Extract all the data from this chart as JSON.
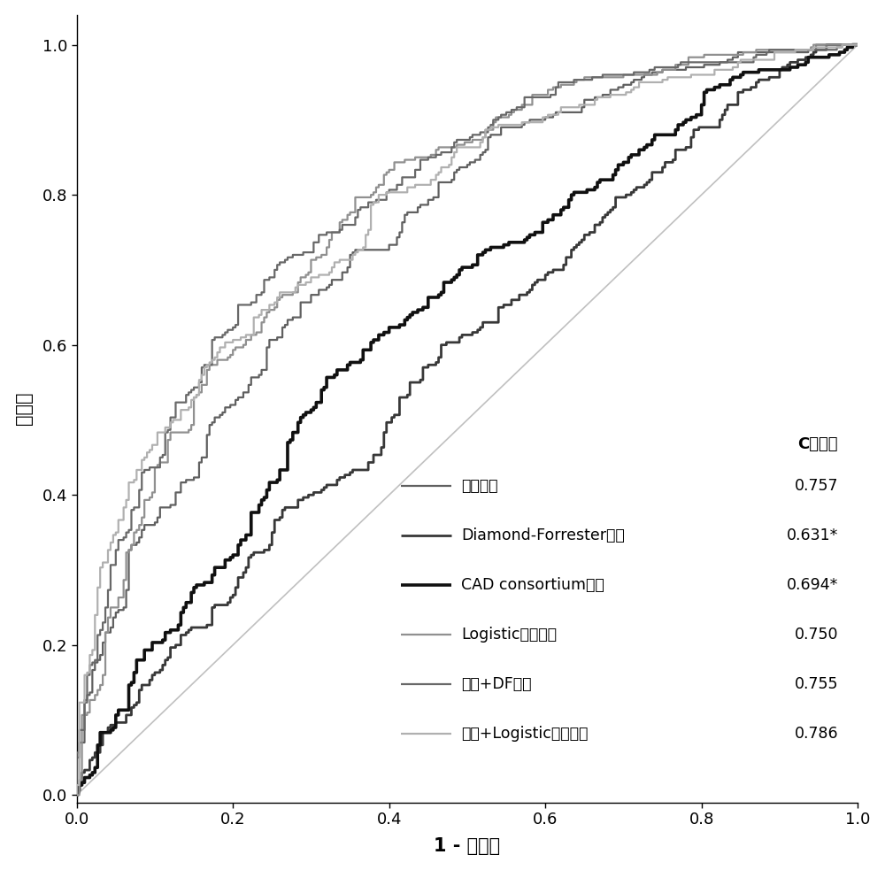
{
  "xlabel": "1 - 特异度",
  "ylabel": "灵敏度",
  "xlim": [
    0.0,
    1.0
  ],
  "ylim": [
    -0.01,
    1.04
  ],
  "xticks": [
    0.0,
    0.2,
    0.4,
    0.6,
    0.8,
    1.0
  ],
  "yticks": [
    0.0,
    0.2,
    0.4,
    0.6,
    0.8,
    1.0
  ],
  "legend_title": "C统计量",
  "curves": [
    {
      "label": "面部模型",
      "auc": "0.757",
      "color": "#606060",
      "linewidth": 1.6,
      "seed": 101
    },
    {
      "label": "Diamond-Forrester模型",
      "auc": "0.631*",
      "color": "#383838",
      "linewidth": 2.0,
      "seed": 202
    },
    {
      "label": "CAD consortium模型",
      "auc": "0.694*",
      "color": "#101010",
      "linewidth": 2.6,
      "seed": 303
    },
    {
      "label": "Logistic回归模型",
      "auc": "0.750",
      "color": "#909090",
      "linewidth": 1.6,
      "seed": 404
    },
    {
      "label": "面部+DF模型",
      "auc": "0.755",
      "color": "#686868",
      "linewidth": 1.6,
      "seed": 505
    },
    {
      "label": "面部+Logistic回归模型",
      "auc": "0.786",
      "color": "#b0b0b0",
      "linewidth": 1.6,
      "seed": 606
    }
  ],
  "diagonal_color": "#c0c0c0",
  "background_color": "#ffffff",
  "figsize": [
    10.0,
    9.83
  ],
  "dpi": 100
}
